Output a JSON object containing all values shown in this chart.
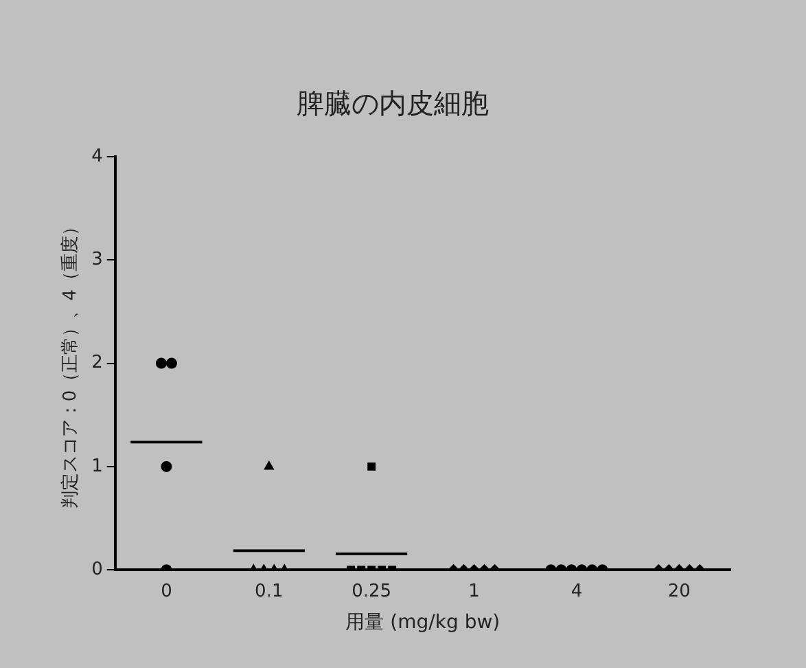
{
  "chart_data": {
    "type": "scatter",
    "title": "脾臓の内皮細胞",
    "xlabel": "用量 (mg/kg bw)",
    "ylabel": "判定スコア：0（正常）、4（重度）",
    "categories": [
      "0",
      "0.1",
      "0.25",
      "1",
      "4",
      "20"
    ],
    "series": [
      {
        "color": "#000000",
        "marker": "circle",
        "x": [
          "0",
          "0",
          "0",
          "0"
        ],
        "values": [
          2,
          2,
          1,
          0
        ]
      },
      {
        "color": "#000000",
        "marker": "triangle",
        "x": [
          "0.1",
          "0.1",
          "0.1",
          "0.1",
          "0.1"
        ],
        "values": [
          1,
          0,
          0,
          0,
          0
        ]
      },
      {
        "color": "#000000",
        "marker": "square",
        "x": [
          "0.25",
          "0.25",
          "0.25",
          "0.25",
          "0.25",
          "0.25"
        ],
        "values": [
          1,
          0,
          0,
          0,
          0,
          0
        ]
      },
      {
        "color": "#000000",
        "marker": "diamond",
        "x": [
          "1",
          "1",
          "1",
          "1",
          "1"
        ],
        "values": [
          0,
          0,
          0,
          0,
          0
        ]
      },
      {
        "color": "#000000",
        "marker": "circle",
        "x": [
          "4",
          "4",
          "4",
          "4",
          "4",
          "4"
        ],
        "values": [
          0,
          0,
          0,
          0,
          0,
          0
        ]
      },
      {
        "color": "#000000",
        "marker": "diamond",
        "x": [
          "20",
          "20",
          "20",
          "20",
          "20"
        ],
        "values": [
          0,
          0,
          0,
          0,
          0
        ]
      },
      {
        "type": "bar",
        "color": "#000000",
        "x": [
          "0",
          "0.1",
          "0.25",
          "1",
          "4",
          "20"
        ],
        "values": [
          1.25,
          0.2,
          0.17,
          0,
          0,
          0
        ]
      }
    ],
    "ylim": [
      0,
      4
    ],
    "yticks": [
      0,
      1,
      2,
      3,
      4
    ],
    "grid": false,
    "legend": false
  }
}
